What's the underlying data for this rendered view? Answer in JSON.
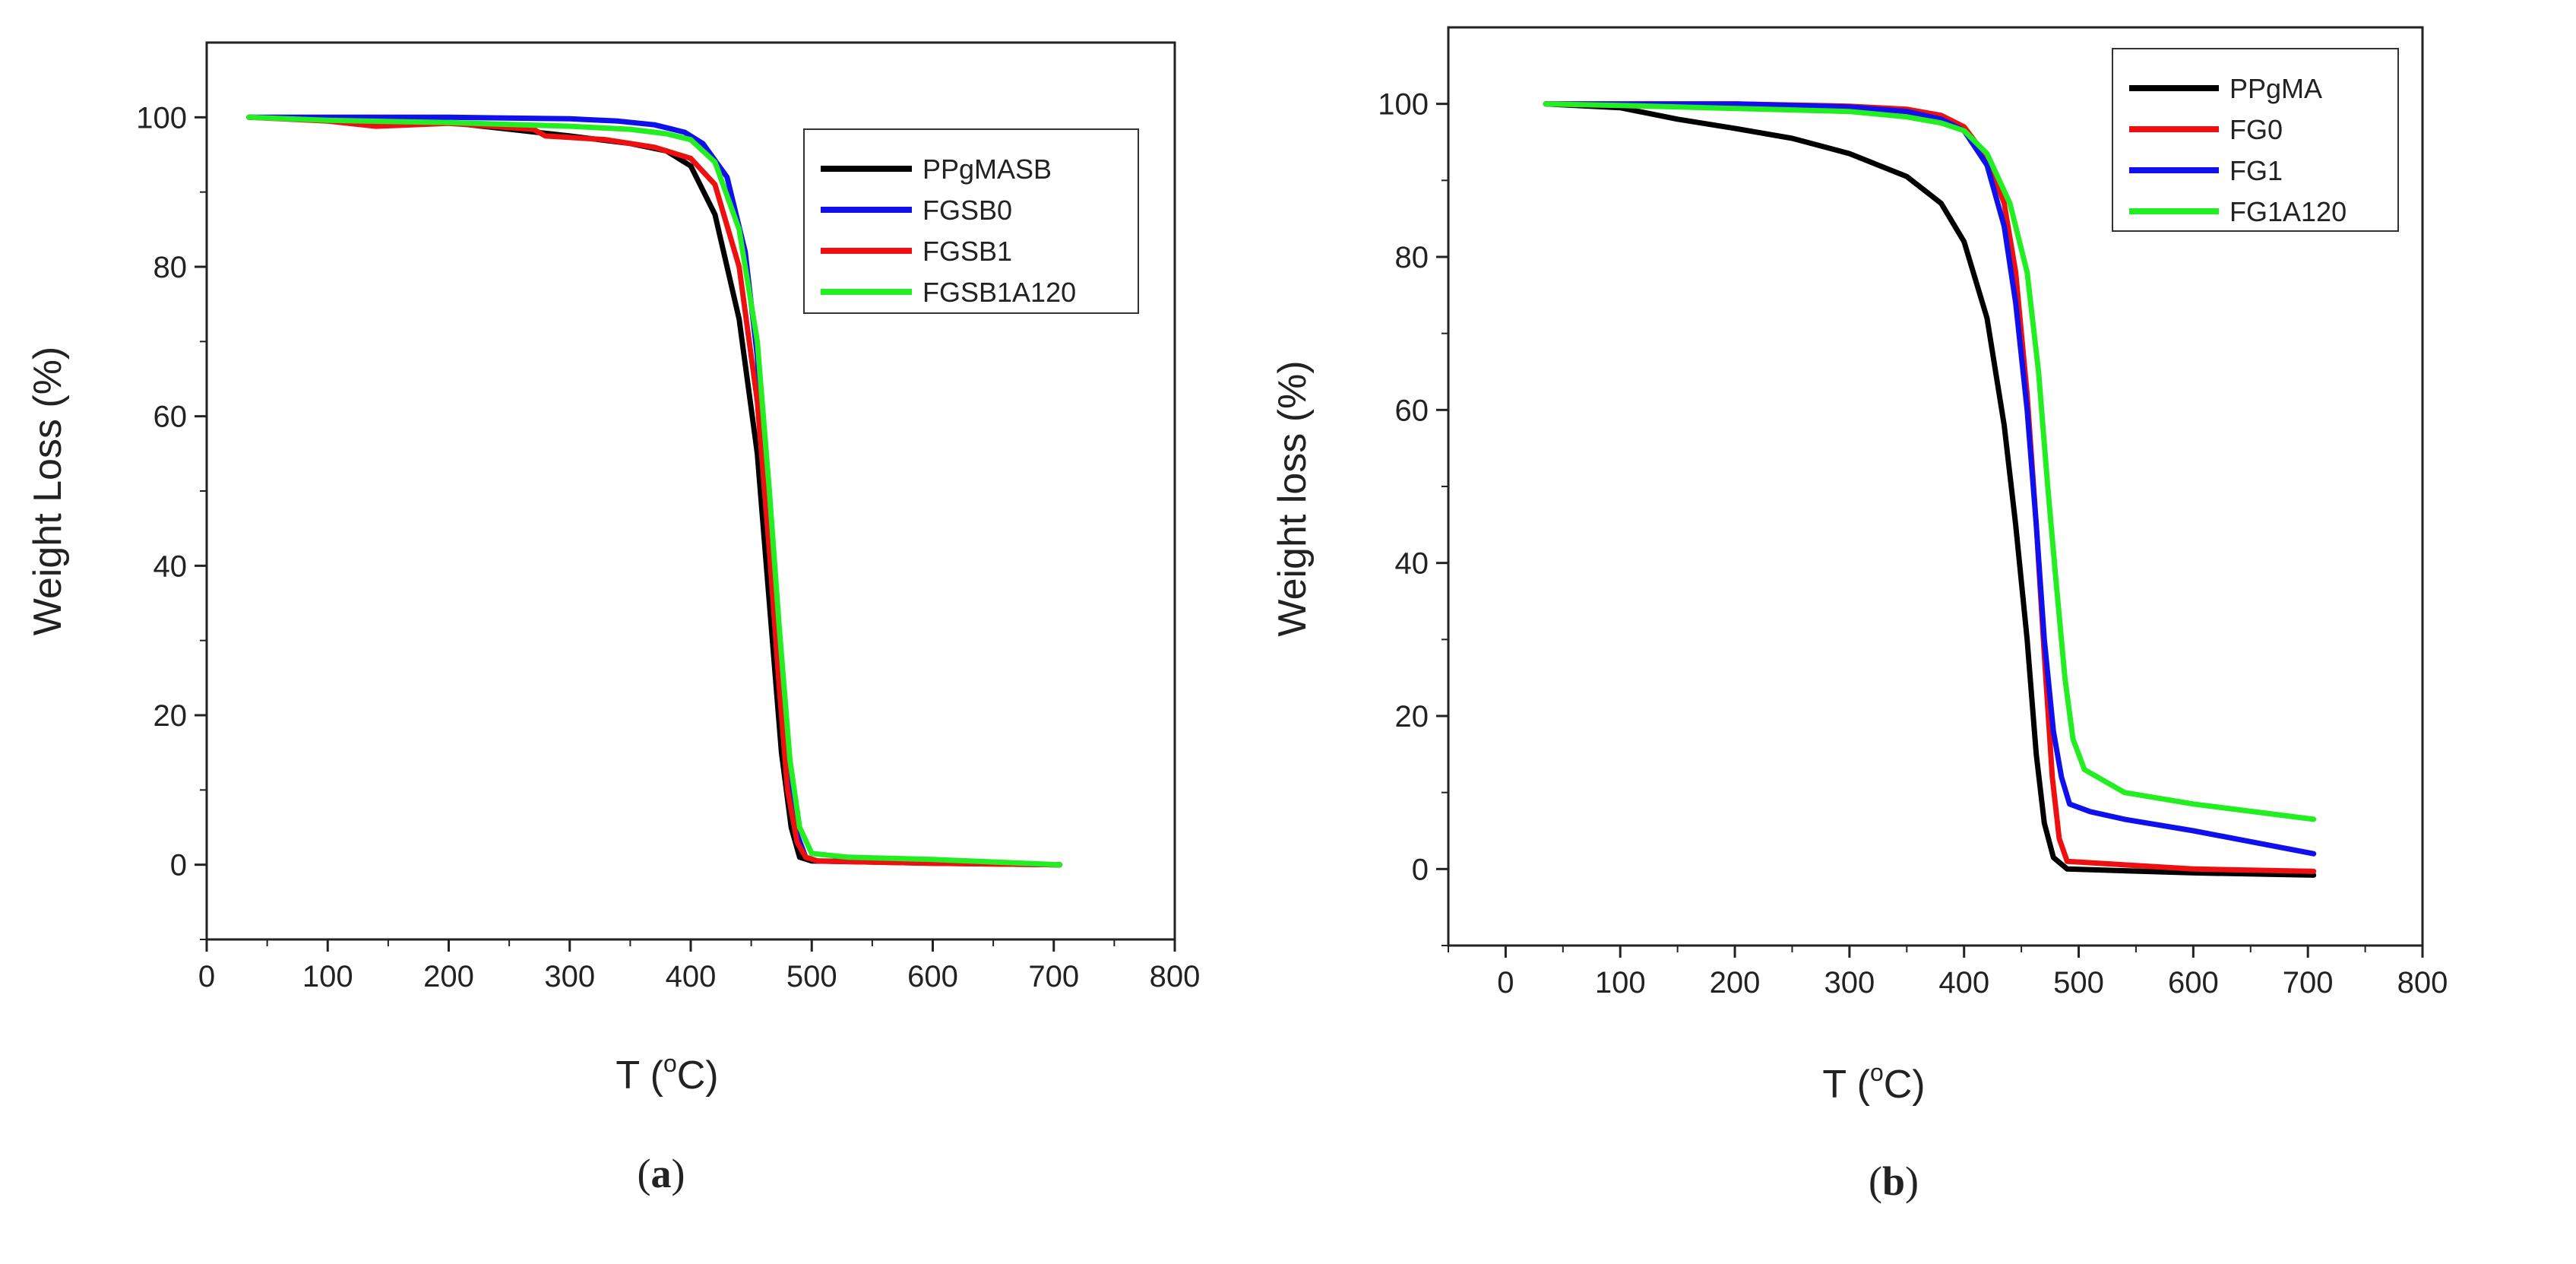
{
  "chart_data": [
    {
      "type": "line",
      "panel_label_open": "(",
      "panel_label_letter": "a",
      "panel_label_close": ")",
      "title": "",
      "xlabel": {
        "prefix": "T (",
        "sup": "o",
        "suffix": "C)"
      },
      "ylabel": "Weight Loss (%)",
      "xlim": [
        0,
        800
      ],
      "ylim": [
        -10,
        110
      ],
      "xticks": [
        0,
        100,
        200,
        300,
        400,
        500,
        600,
        700,
        800
      ],
      "yticks": [
        0,
        20,
        40,
        60,
        80,
        100
      ],
      "grid": false,
      "legend_position": "top-right",
      "series": [
        {
          "name": "PPgMASB",
          "color": "#000000",
          "points": [
            [
              35,
              100
            ],
            [
              100,
              99.7
            ],
            [
              200,
              99.3
            ],
            [
              300,
              97.5
            ],
            [
              350,
              96.5
            ],
            [
              380,
              95.5
            ],
            [
              400,
              93.5
            ],
            [
              420,
              87
            ],
            [
              440,
              73
            ],
            [
              455,
              55
            ],
            [
              465,
              35
            ],
            [
              475,
              15
            ],
            [
              483,
              5
            ],
            [
              490,
              1
            ],
            [
              500,
              0.5
            ],
            [
              600,
              0.2
            ],
            [
              705,
              0
            ]
          ]
        },
        {
          "name": "FGSB0",
          "color": "#1010ee",
          "points": [
            [
              35,
              100
            ],
            [
              100,
              100
            ],
            [
              200,
              100
            ],
            [
              300,
              99.8
            ],
            [
              340,
              99.5
            ],
            [
              370,
              99
            ],
            [
              395,
              98
            ],
            [
              410,
              96.5
            ],
            [
              430,
              92
            ],
            [
              445,
              82
            ],
            [
              455,
              68
            ],
            [
              465,
              45
            ],
            [
              472,
              28
            ],
            [
              480,
              12
            ],
            [
              488,
              4
            ],
            [
              495,
              1
            ],
            [
              505,
              0.5
            ],
            [
              600,
              0.3
            ],
            [
              705,
              0
            ]
          ]
        },
        {
          "name": "FGSB1",
          "color": "#ee1010",
          "points": [
            [
              35,
              100
            ],
            [
              100,
              99.5
            ],
            [
              140,
              98.8
            ],
            [
              200,
              99.2
            ],
            [
              270,
              98.4
            ],
            [
              280,
              97.5
            ],
            [
              330,
              97
            ],
            [
              370,
              96
            ],
            [
              400,
              94.5
            ],
            [
              420,
              91
            ],
            [
              440,
              80
            ],
            [
              455,
              62
            ],
            [
              465,
              42
            ],
            [
              473,
              24
            ],
            [
              480,
              10
            ],
            [
              488,
              3
            ],
            [
              495,
              1
            ],
            [
              505,
              0.5
            ],
            [
              600,
              0.2
            ],
            [
              705,
              0
            ]
          ]
        },
        {
          "name": "FGSB1A120",
          "color": "#22ee22",
          "points": [
            [
              35,
              100
            ],
            [
              100,
              99.6
            ],
            [
              200,
              99.3
            ],
            [
              300,
              98.8
            ],
            [
              350,
              98.4
            ],
            [
              380,
              97.8
            ],
            [
              400,
              97
            ],
            [
              420,
              94
            ],
            [
              440,
              85
            ],
            [
              455,
              70
            ],
            [
              465,
              50
            ],
            [
              473,
              32
            ],
            [
              482,
              14
            ],
            [
              490,
              5
            ],
            [
              500,
              1.5
            ],
            [
              530,
              1
            ],
            [
              600,
              0.7
            ],
            [
              705,
              0
            ]
          ]
        }
      ]
    },
    {
      "type": "line",
      "panel_label_open": "(",
      "panel_label_letter": "b",
      "panel_label_close": ")",
      "title": "",
      "xlabel": {
        "prefix": "T (",
        "sup": "o",
        "suffix": "C)"
      },
      "ylabel": "Weight loss (%)",
      "xlim": [
        -50,
        800
      ],
      "ylim": [
        -10,
        110
      ],
      "xticks": [
        0,
        100,
        200,
        300,
        400,
        500,
        600,
        700,
        800
      ],
      "yticks": [
        0,
        20,
        40,
        60,
        80,
        100
      ],
      "grid": false,
      "legend_position": "top-right",
      "series": [
        {
          "name": "PPgMA",
          "color": "#000000",
          "points": [
            [
              35,
              100
            ],
            [
              100,
              99.5
            ],
            [
              150,
              98
            ],
            [
              200,
              96.8
            ],
            [
              250,
              95.5
            ],
            [
              300,
              93.5
            ],
            [
              350,
              90.5
            ],
            [
              380,
              87
            ],
            [
              400,
              82
            ],
            [
              420,
              72
            ],
            [
              435,
              58
            ],
            [
              445,
              45
            ],
            [
              455,
              30
            ],
            [
              463,
              15
            ],
            [
              470,
              6
            ],
            [
              478,
              1.5
            ],
            [
              490,
              0
            ],
            [
              600,
              -0.5
            ],
            [
              705,
              -0.8
            ]
          ]
        },
        {
          "name": "FG0",
          "color": "#ee1010",
          "points": [
            [
              35,
              100
            ],
            [
              100,
              100
            ],
            [
              200,
              100
            ],
            [
              300,
              99.7
            ],
            [
              350,
              99.3
            ],
            [
              380,
              98.5
            ],
            [
              400,
              97
            ],
            [
              420,
              93
            ],
            [
              435,
              87
            ],
            [
              445,
              78
            ],
            [
              455,
              62
            ],
            [
              463,
              45
            ],
            [
              470,
              28
            ],
            [
              477,
              12
            ],
            [
              483,
              4
            ],
            [
              490,
              1
            ],
            [
              600,
              0
            ],
            [
              705,
              -0.3
            ]
          ]
        },
        {
          "name": "FG1",
          "color": "#1010ee",
          "points": [
            [
              35,
              100
            ],
            [
              100,
              100
            ],
            [
              200,
              100
            ],
            [
              300,
              99.6
            ],
            [
              350,
              99
            ],
            [
              380,
              98
            ],
            [
              400,
              96.5
            ],
            [
              420,
              92
            ],
            [
              435,
              84
            ],
            [
              445,
              74
            ],
            [
              455,
              60
            ],
            [
              463,
              45
            ],
            [
              470,
              30
            ],
            [
              478,
              18
            ],
            [
              485,
              12
            ],
            [
              492,
              8.5
            ],
            [
              510,
              7.5
            ],
            [
              540,
              6.5
            ],
            [
              600,
              5
            ],
            [
              705,
              2
            ]
          ]
        },
        {
          "name": "FG1A120",
          "color": "#22ee22",
          "points": [
            [
              35,
              100
            ],
            [
              100,
              99.8
            ],
            [
              200,
              99.4
            ],
            [
              300,
              99
            ],
            [
              350,
              98.3
            ],
            [
              380,
              97.5
            ],
            [
              400,
              96.5
            ],
            [
              420,
              93.5
            ],
            [
              440,
              87
            ],
            [
              455,
              78
            ],
            [
              465,
              65
            ],
            [
              473,
              50
            ],
            [
              480,
              38
            ],
            [
              488,
              25
            ],
            [
              495,
              17
            ],
            [
              505,
              13
            ],
            [
              540,
              10
            ],
            [
              600,
              8.5
            ],
            [
              705,
              6.5
            ]
          ]
        }
      ]
    }
  ]
}
